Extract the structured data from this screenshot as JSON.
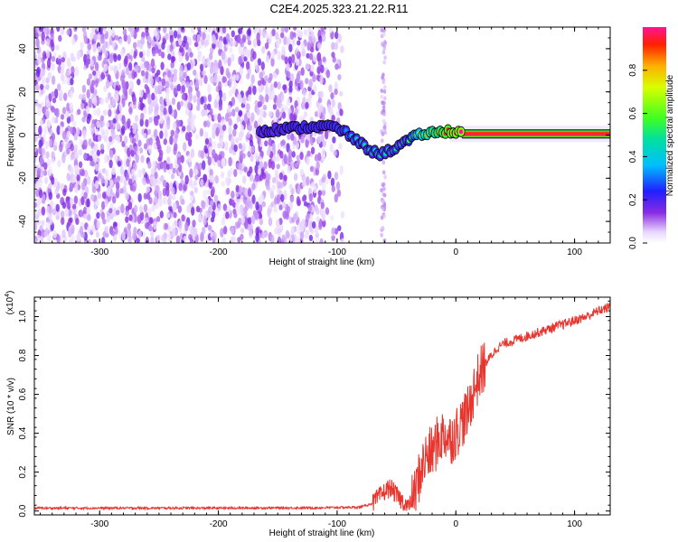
{
  "title": "C2E4.2025.323.21.22.R11",
  "chart_data": [
    {
      "type": "heatmap",
      "name": "spectrogram",
      "xlabel": "Height of straight line (km)",
      "ylabel": "Frequency (Hz)",
      "xlim": [
        -355,
        130
      ],
      "ylim": [
        -50,
        50
      ],
      "x_ticks": [
        -300,
        -200,
        -100,
        0,
        100
      ],
      "x_tick_labels": [
        "-300",
        "-200",
        "-100",
        "0",
        "100"
      ],
      "y_ticks": [
        -40,
        -20,
        0,
        20,
        40
      ],
      "y_tick_labels": [
        "-40",
        "-20",
        "0",
        "20",
        "40"
      ],
      "colorbar": {
        "label": "Normalized spectral amplitude",
        "range": [
          0,
          1
        ],
        "ticks": [
          0,
          0.2,
          0.4,
          0.6,
          0.8
        ],
        "tick_labels": [
          "0.0",
          "0.2",
          "0.4",
          "0.6",
          "0.8"
        ]
      },
      "noise_region_x": [
        -355,
        -95
      ],
      "noise_column_x": -61,
      "tone_track": [
        {
          "x": -165,
          "freq": 2,
          "amp": 0.15
        },
        {
          "x": -140,
          "freq": 3,
          "amp": 0.2
        },
        {
          "x": -120,
          "freq": 4,
          "amp": 0.25
        },
        {
          "x": -105,
          "freq": 4,
          "amp": 0.25
        },
        {
          "x": -95,
          "freq": 2,
          "amp": 0.3
        },
        {
          "x": -85,
          "freq": -2,
          "amp": 0.4
        },
        {
          "x": -75,
          "freq": -6,
          "amp": 0.45
        },
        {
          "x": -65,
          "freq": -9,
          "amp": 0.45
        },
        {
          "x": -55,
          "freq": -7,
          "amp": 0.45
        },
        {
          "x": -45,
          "freq": -4,
          "amp": 0.5
        },
        {
          "x": -35,
          "freq": -1,
          "amp": 0.65
        },
        {
          "x": -25,
          "freq": 1,
          "amp": 0.8
        },
        {
          "x": -15,
          "freq": 1,
          "amp": 0.85
        },
        {
          "x": -5,
          "freq": 2,
          "amp": 0.95
        },
        {
          "x": 5,
          "freq": 1,
          "amp": 1.0
        },
        {
          "x": 40,
          "freq": 0.5,
          "amp": 1.0
        },
        {
          "x": 80,
          "freq": 0.5,
          "amp": 1.0
        },
        {
          "x": 130,
          "freq": 0.5,
          "amp": 1.0
        }
      ]
    },
    {
      "type": "line",
      "name": "snr",
      "xlabel": "Height of straight line (km)",
      "ylabel": "SNR (10 * v/v)",
      "scale_label": "(x10",
      "scale_exp": "4",
      "scale_close": ")",
      "xlim": [
        -355,
        130
      ],
      "ylim": [
        -0.02,
        1.1
      ],
      "x_ticks": [
        -300,
        -200,
        -100,
        0,
        100
      ],
      "x_tick_labels": [
        "-300",
        "-200",
        "-100",
        "0",
        "100"
      ],
      "y_ticks": [
        0,
        0.2,
        0.4,
        0.6,
        0.8,
        1.0
      ],
      "y_tick_labels": [
        "0.0",
        "0.2",
        "0.4",
        "0.6",
        "0.8",
        "1.0"
      ],
      "color": "#e8352e",
      "series": [
        {
          "name": "SNR",
          "x": [
            -355,
            -300,
            -250,
            -200,
            -150,
            -120,
            -100,
            -80,
            -70,
            -60,
            -55,
            -50,
            -45,
            -40,
            -35,
            -30,
            -25,
            -20,
            -15,
            -10,
            -5,
            0,
            5,
            10,
            15,
            20,
            25,
            30,
            35,
            40,
            50,
            60,
            70,
            80,
            90,
            100,
            110,
            120,
            130
          ],
          "y": [
            0.015,
            0.015,
            0.015,
            0.015,
            0.016,
            0.016,
            0.018,
            0.02,
            0.04,
            0.1,
            0.12,
            0.08,
            0.05,
            0.02,
            0.07,
            0.2,
            0.28,
            0.3,
            0.36,
            0.4,
            0.37,
            0.4,
            0.46,
            0.5,
            0.62,
            0.7,
            0.76,
            0.8,
            0.84,
            0.86,
            0.88,
            0.9,
            0.92,
            0.94,
            0.96,
            0.98,
            1.0,
            1.03,
            1.05
          ]
        }
      ]
    }
  ]
}
